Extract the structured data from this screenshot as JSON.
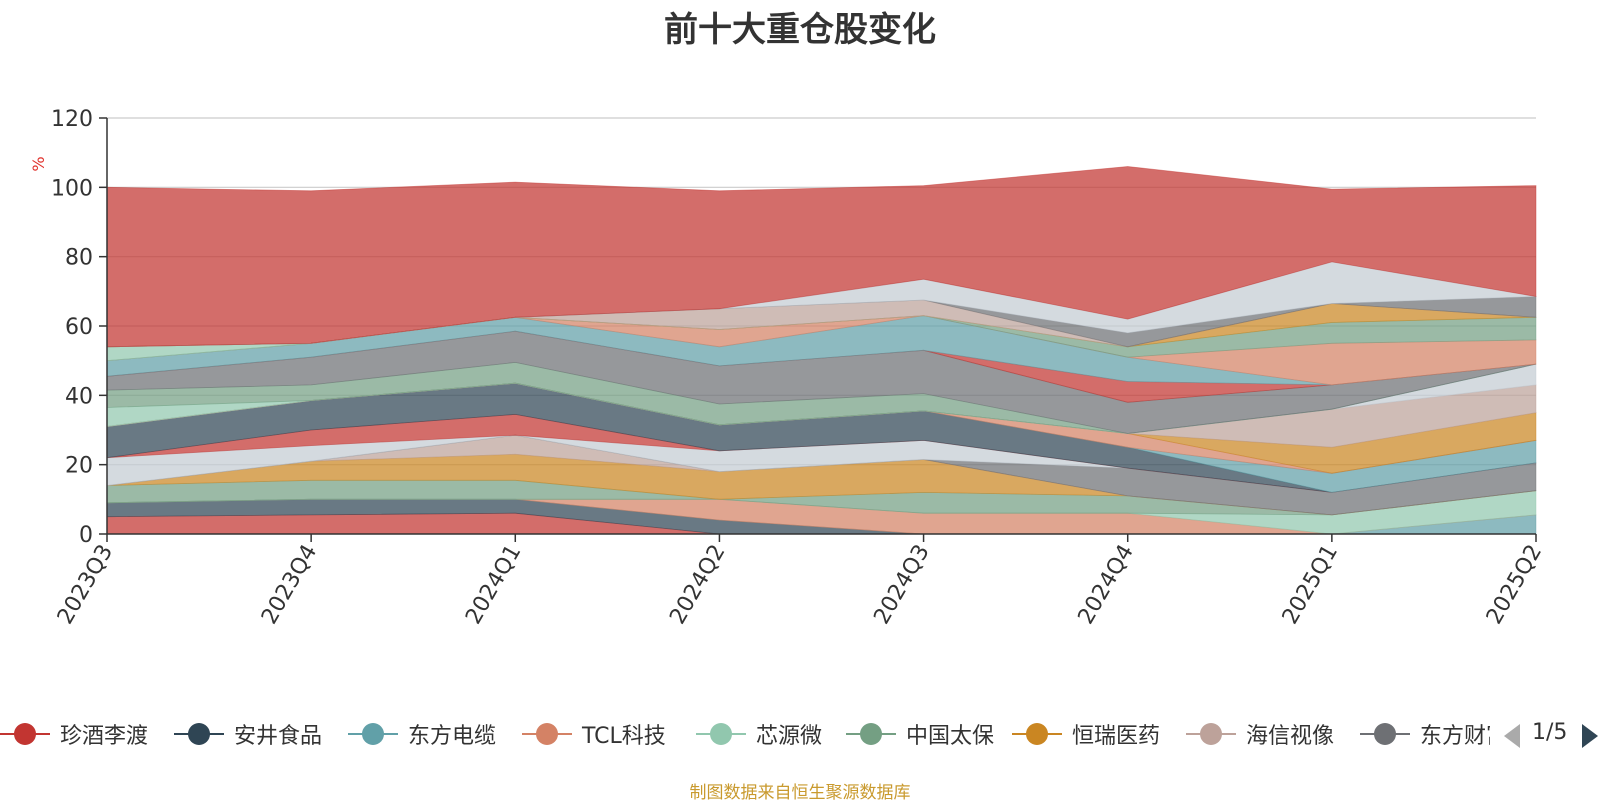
{
  "chart_data": {
    "type": "area",
    "stacked": true,
    "title": "前十大重仓股变化",
    "ylabel": "%",
    "ylim": [
      0,
      120
    ],
    "yticks": [
      0,
      20,
      40,
      60,
      80,
      100,
      120
    ],
    "grid": true,
    "categories": [
      "2023Q3",
      "2023Q4",
      "2024Q1",
      "2024Q2",
      "2024Q3",
      "2024Q4",
      "2025Q1",
      "2025Q2"
    ],
    "series": [
      {
        "name": "珍酒李渡",
        "color": "#c23531",
        "values": [
          5,
          5.5,
          6,
          0,
          0,
          0,
          0,
          0
        ]
      },
      {
        "name": "安井食品",
        "color": "#2f4554",
        "values": [
          4,
          4.5,
          4,
          4,
          0,
          0,
          0,
          0
        ]
      },
      {
        "name": "东方电缆",
        "color": "#61a0a8",
        "values": [
          0,
          0,
          0,
          0,
          0,
          0,
          0,
          5.5
        ]
      },
      {
        "name": "TCL科技",
        "color": "#d48265",
        "values": [
          0,
          0,
          0,
          6,
          6,
          6,
          0,
          0
        ]
      },
      {
        "name": "芯源微",
        "color": "#91c7ae",
        "values": [
          0,
          0,
          0,
          0,
          0,
          0,
          5.5,
          7
        ]
      },
      {
        "name": "中国太保",
        "color": "#749f83",
        "values": [
          5,
          5.5,
          5.5,
          0,
          6,
          5,
          0,
          0
        ]
      },
      {
        "name": "恒瑞医药",
        "color": "#ca8622",
        "values": [
          0,
          5.5,
          7.5,
          8,
          9.5,
          0,
          0,
          0
        ]
      },
      {
        "name": "海信视像",
        "color": "#bda29a",
        "values": [
          0,
          0,
          5.5,
          0,
          0,
          0,
          0,
          0
        ]
      },
      {
        "name": "东方财富",
        "color": "#6e7074",
        "values": [
          0,
          0,
          0,
          0,
          0,
          8,
          6.5,
          8
        ]
      },
      {
        "name": "",
        "color": "#c4ccd3",
        "values": [
          8,
          4.5,
          0,
          6,
          5.5,
          0,
          0,
          0
        ]
      },
      {
        "name": "",
        "color": "#c23531",
        "values": [
          0,
          4.5,
          6,
          0,
          0,
          0,
          0,
          0
        ]
      },
      {
        "name": "",
        "color": "#2f4554",
        "values": [
          9,
          8.5,
          9,
          7.5,
          8.5,
          6,
          0,
          0
        ]
      },
      {
        "name": "",
        "color": "#61a0a8",
        "values": [
          0,
          0,
          0,
          0,
          0,
          0,
          5.5,
          6.5
        ]
      },
      {
        "name": "",
        "color": "#d48265",
        "values": [
          0,
          0,
          0,
          0,
          0,
          4,
          0,
          0
        ]
      },
      {
        "name": "",
        "color": "#ca8622",
        "values": [
          0,
          0,
          0,
          0,
          0,
          0,
          7.5,
          8
        ]
      },
      {
        "name": "",
        "color": "#bda29a",
        "values": [
          0,
          0,
          0,
          0,
          0,
          0,
          11,
          8
        ]
      },
      {
        "name": "",
        "color": "#c4ccd3",
        "values": [
          0,
          0,
          0,
          0,
          0,
          0,
          0,
          6
        ]
      },
      {
        "name": "",
        "color": "#91c7ae",
        "values": [
          5.5,
          0,
          0,
          0,
          0,
          0,
          0,
          0
        ]
      },
      {
        "name": "",
        "color": "#749f83",
        "values": [
          5,
          4.5,
          6,
          6,
          5,
          0,
          0,
          0
        ]
      },
      {
        "name": "",
        "color": "#6e7074",
        "values": [
          4,
          8,
          9,
          11,
          12.5,
          9,
          7,
          0
        ]
      },
      {
        "name": "",
        "color": "#c23531",
        "values": [
          0,
          0,
          0,
          0,
          0,
          6,
          0,
          0
        ]
      },
      {
        "name": "",
        "color": "#61a0a8",
        "values": [
          4.5,
          4,
          4,
          5.5,
          10,
          7,
          0,
          0
        ]
      },
      {
        "name": "",
        "color": "#d48265",
        "values": [
          0,
          0,
          0,
          5,
          0,
          0,
          12,
          7
        ]
      },
      {
        "name": "",
        "color": "#749f83",
        "values": [
          0,
          0,
          0,
          0,
          0,
          3,
          6,
          6.5
        ]
      },
      {
        "name": "",
        "color": "#91c7ae",
        "values": [
          4,
          0,
          0,
          0,
          0,
          0,
          0,
          0
        ]
      },
      {
        "name": "",
        "color": "#ca8622",
        "values": [
          0,
          0,
          0,
          0,
          0,
          0,
          5.5,
          0
        ]
      },
      {
        "name": "",
        "color": "#bda29a",
        "values": [
          0,
          0,
          0,
          6,
          4.5,
          0,
          0,
          0
        ]
      },
      {
        "name": "",
        "color": "#6e7074",
        "values": [
          0,
          0,
          0,
          0,
          0,
          4,
          0,
          6
        ]
      },
      {
        "name": "",
        "color": "#c4ccd3",
        "values": [
          0,
          0,
          0,
          0,
          6,
          4,
          12,
          0
        ]
      },
      {
        "name": "",
        "color": "#c23531",
        "values": [
          46,
          44,
          39,
          34,
          27,
          44,
          21,
          32
        ]
      }
    ]
  },
  "legend": {
    "items": [
      {
        "label": "珍酒李渡",
        "color": "#c23531"
      },
      {
        "label": "安井食品",
        "color": "#2f4554"
      },
      {
        "label": "东方电缆",
        "color": "#61a0a8"
      },
      {
        "label": "TCL科技",
        "color": "#d48265"
      },
      {
        "label": "芯源微",
        "color": "#91c7ae"
      },
      {
        "label": "中国太保",
        "color": "#749f83"
      },
      {
        "label": "恒瑞医药",
        "color": "#ca8622"
      },
      {
        "label": "海信视像",
        "color": "#bda29a"
      },
      {
        "label": "东方财富",
        "color": "#6e7074"
      }
    ],
    "page_text": "1/5"
  },
  "footer": "制图数据来自恒生聚源数据库"
}
